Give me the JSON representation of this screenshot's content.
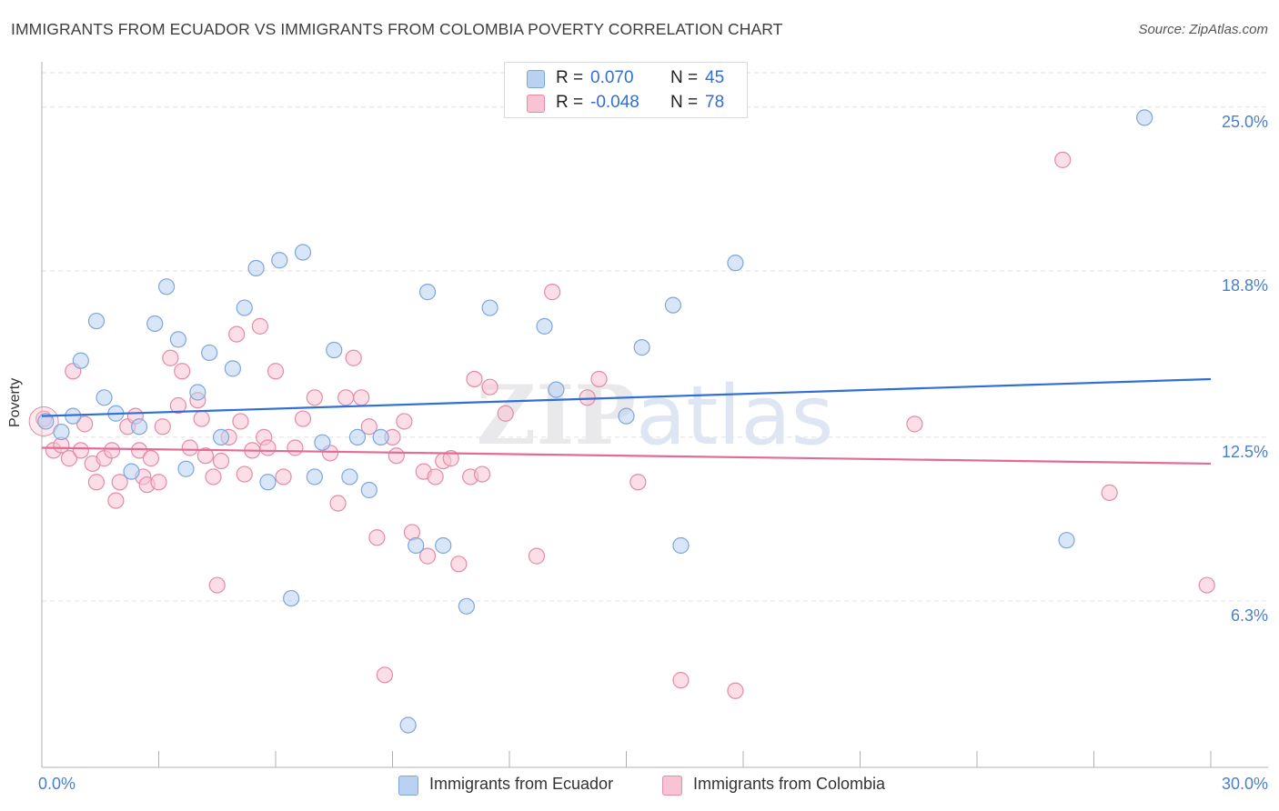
{
  "header": {
    "title": "IMMIGRANTS FROM ECUADOR VS IMMIGRANTS FROM COLOMBIA POVERTY CORRELATION CHART",
    "source": "Source: ZipAtlas.com"
  },
  "stats": {
    "rows": [
      {
        "r_label": "R =",
        "r_value": "0.070",
        "n_label": "N =",
        "n_value": "45"
      },
      {
        "r_label": "R =",
        "r_value": "-0.048",
        "n_label": "N =",
        "n_value": "78"
      }
    ]
  },
  "legend": {
    "items": [
      {
        "label": "Immigrants from Ecuador"
      },
      {
        "label": "Immigrants from Colombia"
      }
    ]
  },
  "colors": {
    "blue_fill": "#b9d2f2",
    "blue_stroke": "#7fa6dc",
    "blue_line": "#2f6fd6",
    "pink_fill": "#f8c3d2",
    "pink_stroke": "#e68aa7",
    "pink_line": "#e26b98",
    "grid": "#e0e0e0",
    "axis_label": "#4a7fcb"
  },
  "chart_data": {
    "type": "scatter",
    "title": "IMMIGRANTS FROM ECUADOR VS IMMIGRANTS FROM COLOMBIA POVERTY CORRELATION CHART",
    "xlabel": "",
    "ylabel": "Poverty",
    "xlim": [
      0,
      30
    ],
    "ylim": [
      0,
      26.3
    ],
    "x_tick_labels": [
      {
        "value": 0,
        "label": "0.0%"
      },
      {
        "value": 30,
        "label": "30.0%"
      }
    ],
    "y_tick_labels": [
      {
        "value": 6.3,
        "label": "6.3%"
      },
      {
        "value": 12.5,
        "label": "12.5%"
      },
      {
        "value": 18.8,
        "label": "18.8%"
      },
      {
        "value": 25.0,
        "label": "25.0%"
      }
    ],
    "watermark": "ZIPatlas",
    "series": [
      {
        "name": "Immigrants from Ecuador",
        "color": "blue",
        "R": 0.07,
        "N": 45,
        "trend": {
          "x": [
            0,
            30
          ],
          "y": [
            13.3,
            14.7
          ]
        },
        "points": [
          [
            0.1,
            13.1
          ],
          [
            0.5,
            12.7
          ],
          [
            0.8,
            13.3
          ],
          [
            1.0,
            15.4
          ],
          [
            1.4,
            16.9
          ],
          [
            1.6,
            14.0
          ],
          [
            1.9,
            13.4
          ],
          [
            2.3,
            11.2
          ],
          [
            2.5,
            12.9
          ],
          [
            2.9,
            16.8
          ],
          [
            3.2,
            18.2
          ],
          [
            3.5,
            16.2
          ],
          [
            3.7,
            11.3
          ],
          [
            4.0,
            14.2
          ],
          [
            4.3,
            15.7
          ],
          [
            4.6,
            12.5
          ],
          [
            4.9,
            15.1
          ],
          [
            5.2,
            17.4
          ],
          [
            5.5,
            18.9
          ],
          [
            5.8,
            10.8
          ],
          [
            6.1,
            19.2
          ],
          [
            6.4,
            6.4
          ],
          [
            6.7,
            19.5
          ],
          [
            7.0,
            11.0
          ],
          [
            7.2,
            12.3
          ],
          [
            7.5,
            15.8
          ],
          [
            7.9,
            11.0
          ],
          [
            8.1,
            12.5
          ],
          [
            8.4,
            10.5
          ],
          [
            8.7,
            12.5
          ],
          [
            9.4,
            1.6
          ],
          [
            9.6,
            8.4
          ],
          [
            9.9,
            18.0
          ],
          [
            10.3,
            8.4
          ],
          [
            10.9,
            6.1
          ],
          [
            11.5,
            17.4
          ],
          [
            12.9,
            16.7
          ],
          [
            13.2,
            14.3
          ],
          [
            15.0,
            13.3
          ],
          [
            15.4,
            15.9
          ],
          [
            16.2,
            17.5
          ],
          [
            16.4,
            8.4
          ],
          [
            17.8,
            19.1
          ],
          [
            26.3,
            8.6
          ],
          [
            28.3,
            24.6
          ]
        ]
      },
      {
        "name": "Immigrants from Colombia",
        "color": "pink",
        "R": -0.048,
        "N": 78,
        "trend": {
          "x": [
            0,
            30
          ],
          "y": [
            12.1,
            11.5
          ]
        },
        "points": [
          [
            0.05,
            13.2
          ],
          [
            0.3,
            12.0
          ],
          [
            0.5,
            12.2
          ],
          [
            0.7,
            11.7
          ],
          [
            0.8,
            15.0
          ],
          [
            1.0,
            12.0
          ],
          [
            1.1,
            13.0
          ],
          [
            1.3,
            11.5
          ],
          [
            1.4,
            10.8
          ],
          [
            1.6,
            11.7
          ],
          [
            1.8,
            12.0
          ],
          [
            1.9,
            10.1
          ],
          [
            2.0,
            10.8
          ],
          [
            2.2,
            12.9
          ],
          [
            2.4,
            13.3
          ],
          [
            2.5,
            12.0
          ],
          [
            2.6,
            11.0
          ],
          [
            2.7,
            10.7
          ],
          [
            2.8,
            11.7
          ],
          [
            3.0,
            10.8
          ],
          [
            3.1,
            12.9
          ],
          [
            3.3,
            15.5
          ],
          [
            3.5,
            13.7
          ],
          [
            3.6,
            15.0
          ],
          [
            3.8,
            12.1
          ],
          [
            4.0,
            13.9
          ],
          [
            4.1,
            13.2
          ],
          [
            4.2,
            11.8
          ],
          [
            4.4,
            11.0
          ],
          [
            4.5,
            6.9
          ],
          [
            4.6,
            11.6
          ],
          [
            4.8,
            12.5
          ],
          [
            5.0,
            16.4
          ],
          [
            5.1,
            13.1
          ],
          [
            5.2,
            11.1
          ],
          [
            5.4,
            12.0
          ],
          [
            5.6,
            16.7
          ],
          [
            5.7,
            12.5
          ],
          [
            5.8,
            12.1
          ],
          [
            6.0,
            15.0
          ],
          [
            6.2,
            11.0
          ],
          [
            6.5,
            12.1
          ],
          [
            6.7,
            13.2
          ],
          [
            7.0,
            14.0
          ],
          [
            7.4,
            11.9
          ],
          [
            7.6,
            10.0
          ],
          [
            7.8,
            14.0
          ],
          [
            8.0,
            15.5
          ],
          [
            8.2,
            14.0
          ],
          [
            8.4,
            12.9
          ],
          [
            8.6,
            8.7
          ],
          [
            8.8,
            3.5
          ],
          [
            9.0,
            12.5
          ],
          [
            9.1,
            11.8
          ],
          [
            9.3,
            13.1
          ],
          [
            9.5,
            8.9
          ],
          [
            9.8,
            11.2
          ],
          [
            9.9,
            8.0
          ],
          [
            10.1,
            11.0
          ],
          [
            10.3,
            11.6
          ],
          [
            10.5,
            11.7
          ],
          [
            10.7,
            7.7
          ],
          [
            11.0,
            11.0
          ],
          [
            11.1,
            14.7
          ],
          [
            11.3,
            11.1
          ],
          [
            11.5,
            14.4
          ],
          [
            11.9,
            13.4
          ],
          [
            12.7,
            8.0
          ],
          [
            13.1,
            18.0
          ],
          [
            14.0,
            14.0
          ],
          [
            14.3,
            14.7
          ],
          [
            15.3,
            10.8
          ],
          [
            16.4,
            3.3
          ],
          [
            17.8,
            2.9
          ],
          [
            22.4,
            13.0
          ],
          [
            26.2,
            23.0
          ],
          [
            27.4,
            10.4
          ],
          [
            29.9,
            6.9
          ]
        ]
      }
    ]
  }
}
